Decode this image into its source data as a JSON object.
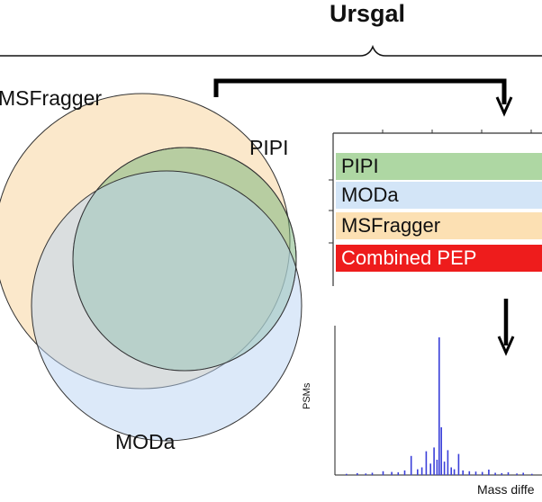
{
  "title": "Ursgal",
  "venn": {
    "sets": [
      {
        "name": "MSFragger",
        "color": "#f9d9a8"
      },
      {
        "name": "PIPI",
        "color": "#7fb77f"
      },
      {
        "name": "MODa",
        "color": "#b9d3f3"
      }
    ]
  },
  "bars": [
    {
      "label": "PIPI",
      "color": "#aed7a3",
      "text_color": "#111111"
    },
    {
      "label": "MODa",
      "color": "#d3e5f7",
      "text_color": "#111111"
    },
    {
      "label": "MSFragger",
      "color": "#fce0b3",
      "text_color": "#111111"
    },
    {
      "label": "Combined PEP",
      "color": "#ee1c1c",
      "text_color": "#ffffff"
    }
  ],
  "histogram": {
    "ylabel": "PSMs",
    "xlabel": "Mass diffe",
    "color": "#3a3fd9"
  },
  "chart_data": {
    "type": "bar",
    "title": "",
    "xlabel": "Mass diffe",
    "ylabel": "PSMs",
    "x": [
      -215,
      -190,
      -170,
      -155,
      -130,
      -110,
      -95,
      -80,
      -65,
      -50,
      -40,
      -30,
      -20,
      -12,
      -5,
      0,
      5,
      12,
      20,
      28,
      35,
      45,
      55,
      70,
      85,
      100,
      115,
      130,
      145,
      160,
      180,
      195,
      215
    ],
    "values": [
      0.3,
      0.5,
      0.4,
      0.6,
      1.0,
      0.8,
      0.7,
      1.2,
      5.0,
      1.5,
      2.0,
      6.2,
      3.0,
      7.2,
      4.0,
      36.0,
      12.5,
      3.5,
      6.5,
      2.0,
      1.5,
      5.5,
      1.2,
      1.0,
      0.9,
      0.8,
      1.4,
      0.6,
      0.5,
      0.7,
      0.4,
      0.6,
      0.3
    ]
  }
}
